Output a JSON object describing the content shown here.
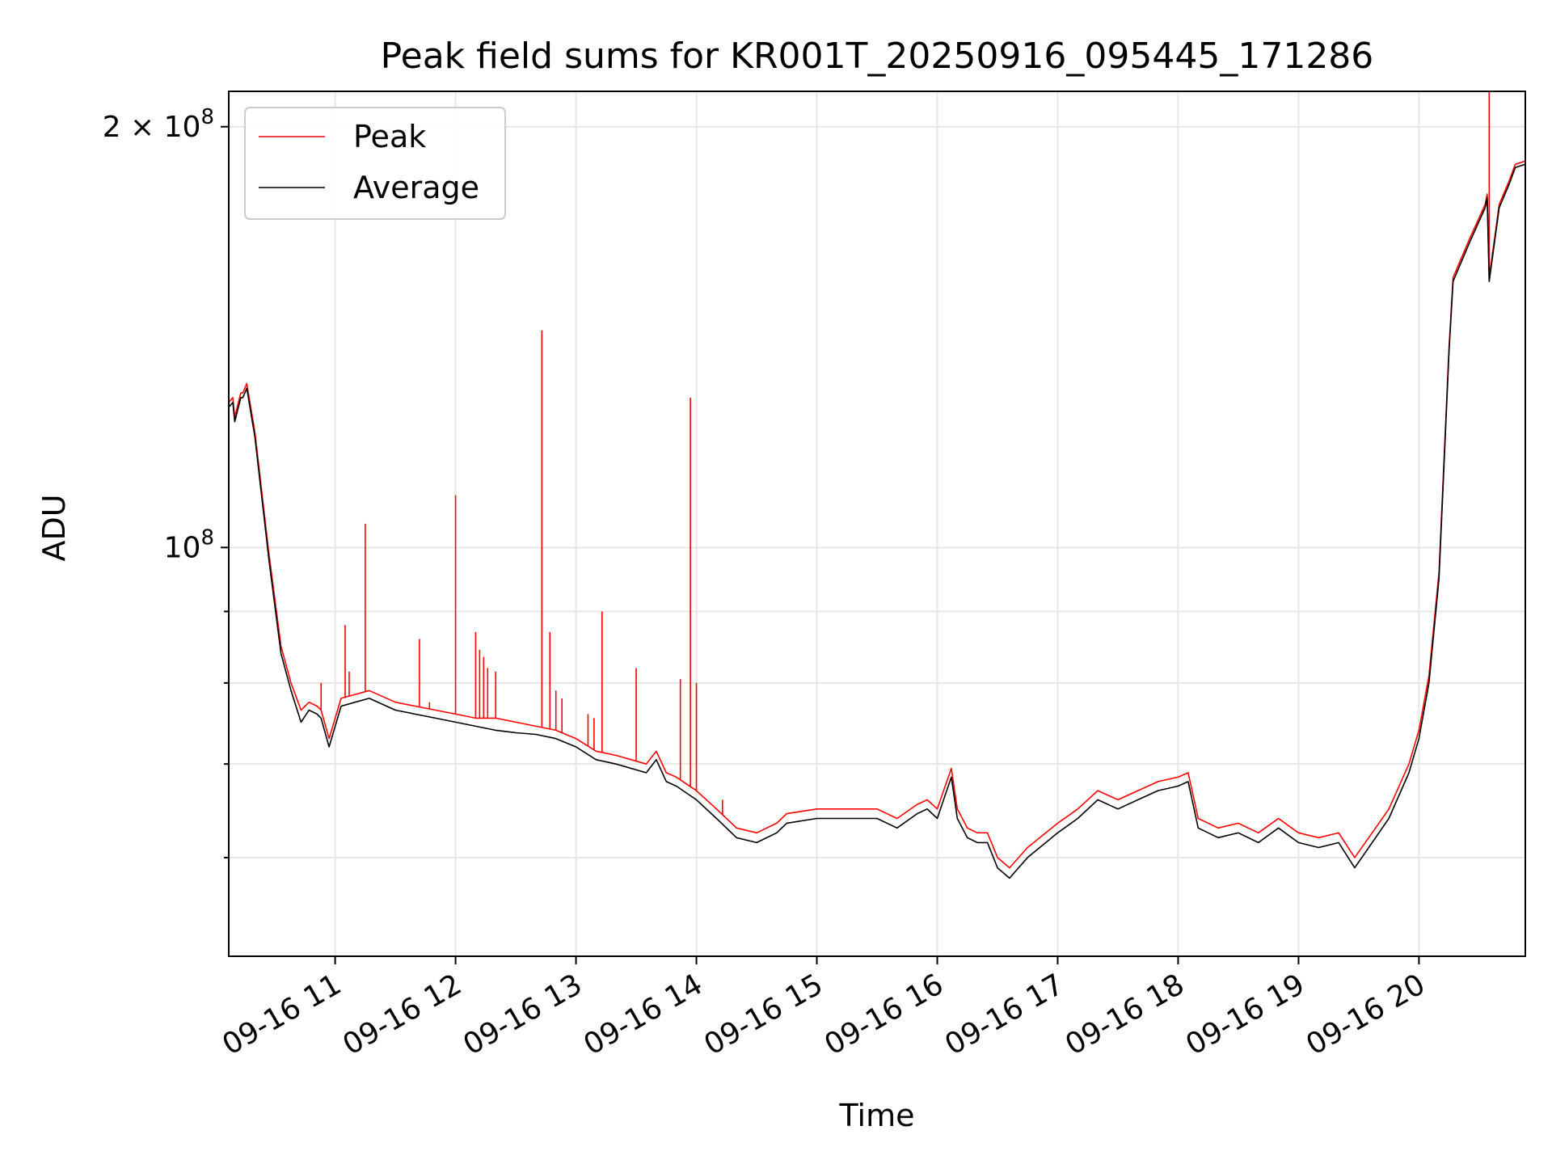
{
  "chart_data": {
    "type": "line",
    "title": "Peak field sums for KR001T_20250916_095445_171286",
    "xlabel": "Time",
    "ylabel": "ADU",
    "y_scale": "log",
    "ylim": [
      51000000,
      212000000
    ],
    "xlim": [
      "2025-09-16 10:07",
      "2025-09-16 20:53"
    ],
    "grid": true,
    "legend_position": "top-left",
    "x_ticks": [
      {
        "t": "2025-09-16 11:00",
        "label": "09-16 11"
      },
      {
        "t": "2025-09-16 12:00",
        "label": "09-16 12"
      },
      {
        "t": "2025-09-16 13:00",
        "label": "09-16 13"
      },
      {
        "t": "2025-09-16 14:00",
        "label": "09-16 14"
      },
      {
        "t": "2025-09-16 15:00",
        "label": "09-16 15"
      },
      {
        "t": "2025-09-16 16:00",
        "label": "09-16 16"
      },
      {
        "t": "2025-09-16 17:00",
        "label": "09-16 17"
      },
      {
        "t": "2025-09-16 18:00",
        "label": "09-16 18"
      },
      {
        "t": "2025-09-16 19:00",
        "label": "09-16 19"
      },
      {
        "t": "2025-09-16 20:00",
        "label": "09-16 20"
      }
    ],
    "y_major_ticks": [
      {
        "value": 100000000,
        "base": "10",
        "exp": "8",
        "coef": ""
      },
      {
        "value": 200000000,
        "base": "10",
        "exp": "8",
        "coef": "2 × "
      }
    ],
    "y_minor_ticks": [
      60000000,
      70000000,
      80000000,
      90000000
    ],
    "series": [
      {
        "name": "Average",
        "color": "#000000",
        "x": [
          "2025-09-16 10:07",
          "2025-09-16 10:09",
          "2025-09-16 10:10",
          "2025-09-16 10:13",
          "2025-09-16 10:14",
          "2025-09-16 10:16",
          "2025-09-16 10:20",
          "2025-09-16 10:27",
          "2025-09-16 10:33",
          "2025-09-16 10:38",
          "2025-09-16 10:43",
          "2025-09-16 10:47",
          "2025-09-16 10:51",
          "2025-09-16 10:53",
          "2025-09-16 10:57",
          "2025-09-16 11:03",
          "2025-09-16 11:10",
          "2025-09-16 11:17",
          "2025-09-16 11:30",
          "2025-09-16 11:50",
          "2025-09-16 12:00",
          "2025-09-16 12:10",
          "2025-09-16 12:20",
          "2025-09-16 12:30",
          "2025-09-16 12:40",
          "2025-09-16 12:50",
          "2025-09-16 13:00",
          "2025-09-16 13:10",
          "2025-09-16 13:20",
          "2025-09-16 13:35",
          "2025-09-16 13:40",
          "2025-09-16 13:45",
          "2025-09-16 13:50",
          "2025-09-16 14:00",
          "2025-09-16 14:10",
          "2025-09-16 14:20",
          "2025-09-16 14:30",
          "2025-09-16 14:40",
          "2025-09-16 14:45",
          "2025-09-16 15:00",
          "2025-09-16 15:30",
          "2025-09-16 15:40",
          "2025-09-16 15:50",
          "2025-09-16 15:55",
          "2025-09-16 16:00",
          "2025-09-16 16:07",
          "2025-09-16 16:10",
          "2025-09-16 16:15",
          "2025-09-16 16:20",
          "2025-09-16 16:25",
          "2025-09-16 16:30",
          "2025-09-16 16:36",
          "2025-09-16 16:45",
          "2025-09-16 17:00",
          "2025-09-16 17:10",
          "2025-09-16 17:20",
          "2025-09-16 17:30",
          "2025-09-16 17:40",
          "2025-09-16 17:50",
          "2025-09-16 18:00",
          "2025-09-16 18:05",
          "2025-09-16 18:10",
          "2025-09-16 18:20",
          "2025-09-16 18:30",
          "2025-09-16 18:40",
          "2025-09-16 18:50",
          "2025-09-16 19:00",
          "2025-09-16 19:10",
          "2025-09-16 19:20",
          "2025-09-16 19:28",
          "2025-09-16 19:35",
          "2025-09-16 19:45",
          "2025-09-16 19:55",
          "2025-09-16 20:00",
          "2025-09-16 20:05",
          "2025-09-16 20:10",
          "2025-09-16 20:15",
          "2025-09-16 20:17",
          "2025-09-16 20:25",
          "2025-09-16 20:33",
          "2025-09-16 20:34",
          "2025-09-16 20:35",
          "2025-09-16 20:40",
          "2025-09-16 20:45",
          "2025-09-16 20:48",
          "2025-09-16 20:53"
        ],
        "values": [
          126000000,
          127000000,
          123000000,
          128000000,
          128000000,
          130000000,
          120000000,
          98000000,
          84000000,
          79000000,
          75000000,
          76500000,
          76000000,
          75500000,
          72000000,
          77000000,
          77500000,
          78000000,
          76500000,
          75500000,
          75000000,
          74500000,
          74000000,
          73700000,
          73500000,
          73000000,
          72000000,
          70500000,
          70000000,
          69000000,
          70500000,
          68000000,
          67500000,
          66000000,
          64000000,
          62000000,
          61500000,
          62500000,
          63500000,
          64000000,
          64000000,
          63000000,
          64500000,
          65000000,
          64000000,
          68500000,
          64000000,
          62000000,
          61500000,
          61500000,
          59000000,
          58000000,
          60000000,
          62500000,
          64000000,
          66000000,
          65000000,
          66000000,
          67000000,
          67500000,
          68000000,
          63000000,
          62000000,
          62500000,
          61500000,
          63000000,
          61500000,
          61000000,
          61500000,
          59000000,
          61000000,
          64000000,
          69000000,
          73000000,
          80000000,
          95000000,
          138000000,
          155000000,
          165000000,
          175000000,
          178000000,
          155000000,
          175000000,
          182000000,
          187000000,
          188000000
        ]
      },
      {
        "name": "Peak",
        "color": "#ff0000",
        "x": [
          "2025-09-16 10:07",
          "2025-09-16 10:09",
          "2025-09-16 10:10",
          "2025-09-16 10:13",
          "2025-09-16 10:14",
          "2025-09-16 10:16",
          "2025-09-16 10:20",
          "2025-09-16 10:27",
          "2025-09-16 10:33",
          "2025-09-16 10:38",
          "2025-09-16 10:43",
          "2025-09-16 10:47",
          "2025-09-16 10:51",
          "2025-09-16 10:53",
          "2025-09-16 10:57",
          "2025-09-16 11:03",
          "2025-09-16 11:10",
          "2025-09-16 11:17",
          "2025-09-16 11:30",
          "2025-09-16 11:50",
          "2025-09-16 12:00",
          "2025-09-16 12:10",
          "2025-09-16 12:20",
          "2025-09-16 12:30",
          "2025-09-16 12:40",
          "2025-09-16 12:50",
          "2025-09-16 13:00",
          "2025-09-16 13:10",
          "2025-09-16 13:20",
          "2025-09-16 13:35",
          "2025-09-16 13:40",
          "2025-09-16 13:45",
          "2025-09-16 13:50",
          "2025-09-16 14:00",
          "2025-09-16 14:10",
          "2025-09-16 14:20",
          "2025-09-16 14:30",
          "2025-09-16 14:40",
          "2025-09-16 14:45",
          "2025-09-16 15:00",
          "2025-09-16 15:30",
          "2025-09-16 15:40",
          "2025-09-16 15:50",
          "2025-09-16 15:55",
          "2025-09-16 16:00",
          "2025-09-16 16:07",
          "2025-09-16 16:10",
          "2025-09-16 16:15",
          "2025-09-16 16:20",
          "2025-09-16 16:25",
          "2025-09-16 16:30",
          "2025-09-16 16:36",
          "2025-09-16 16:45",
          "2025-09-16 17:00",
          "2025-09-16 17:10",
          "2025-09-16 17:20",
          "2025-09-16 17:30",
          "2025-09-16 17:40",
          "2025-09-16 17:50",
          "2025-09-16 18:00",
          "2025-09-16 18:05",
          "2025-09-16 18:10",
          "2025-09-16 18:20",
          "2025-09-16 18:30",
          "2025-09-16 18:40",
          "2025-09-16 18:50",
          "2025-09-16 19:00",
          "2025-09-16 19:10",
          "2025-09-16 19:20",
          "2025-09-16 19:28",
          "2025-09-16 19:35",
          "2025-09-16 19:45",
          "2025-09-16 19:55",
          "2025-09-16 20:00",
          "2025-09-16 20:05",
          "2025-09-16 20:10",
          "2025-09-16 20:15",
          "2025-09-16 20:17",
          "2025-09-16 20:25",
          "2025-09-16 20:33",
          "2025-09-16 20:34",
          "2025-09-16 20:35",
          "2025-09-16 20:40",
          "2025-09-16 20:45",
          "2025-09-16 20:48",
          "2025-09-16 20:53"
        ],
        "values": [
          127000000,
          128000000,
          124000000,
          129000000,
          129000000,
          131000000,
          121000000,
          99000000,
          85000000,
          80000000,
          76500000,
          77500000,
          77000000,
          76500000,
          73000000,
          78000000,
          78500000,
          79000000,
          77500000,
          76500000,
          76000000,
          75500000,
          75500000,
          75000000,
          74500000,
          74000000,
          73000000,
          71500000,
          71000000,
          70000000,
          71500000,
          69000000,
          68500000,
          67000000,
          65000000,
          63000000,
          62500000,
          63500000,
          64500000,
          65000000,
          65000000,
          64000000,
          65500000,
          66000000,
          65000000,
          69500000,
          65000000,
          63000000,
          62500000,
          62500000,
          60000000,
          59000000,
          61000000,
          63500000,
          65000000,
          67000000,
          66000000,
          67000000,
          68000000,
          68500000,
          69000000,
          64000000,
          63000000,
          63500000,
          62500000,
          64000000,
          62500000,
          62000000,
          62500000,
          60000000,
          62000000,
          65000000,
          70000000,
          74000000,
          81000000,
          96000000,
          139000000,
          156000000,
          166000000,
          176000000,
          179000000,
          156000000,
          176000000,
          183000000,
          188000000,
          189000000
        ],
        "spikes": [
          {
            "t": "2025-09-16 10:53",
            "value": 80000000
          },
          {
            "t": "2025-09-16 11:05",
            "value": 88000000
          },
          {
            "t": "2025-09-16 11:07",
            "value": 81500000
          },
          {
            "t": "2025-09-16 11:15",
            "value": 104000000
          },
          {
            "t": "2025-09-16 11:42",
            "value": 86000000
          },
          {
            "t": "2025-09-16 11:47",
            "value": 77500000
          },
          {
            "t": "2025-09-16 12:00",
            "value": 109000000
          },
          {
            "t": "2025-09-16 12:10",
            "value": 87000000
          },
          {
            "t": "2025-09-16 12:12",
            "value": 84500000
          },
          {
            "t": "2025-09-16 12:14",
            "value": 83500000
          },
          {
            "t": "2025-09-16 12:16",
            "value": 82000000
          },
          {
            "t": "2025-09-16 12:20",
            "value": 81500000
          },
          {
            "t": "2025-09-16 12:43",
            "value": 143000000
          },
          {
            "t": "2025-09-16 12:47",
            "value": 87000000
          },
          {
            "t": "2025-09-16 12:50",
            "value": 79000000
          },
          {
            "t": "2025-09-16 12:53",
            "value": 78000000
          },
          {
            "t": "2025-09-16 13:06",
            "value": 76000000
          },
          {
            "t": "2025-09-16 13:09",
            "value": 75500000
          },
          {
            "t": "2025-09-16 13:13",
            "value": 90000000
          },
          {
            "t": "2025-09-16 13:30",
            "value": 82000000
          },
          {
            "t": "2025-09-16 13:52",
            "value": 80500000
          },
          {
            "t": "2025-09-16 13:57",
            "value": 128000000
          },
          {
            "t": "2025-09-16 14:00",
            "value": 80000000
          },
          {
            "t": "2025-09-16 14:13",
            "value": 66000000
          },
          {
            "t": "2025-09-16 20:35",
            "value": 212000000
          }
        ]
      }
    ]
  }
}
